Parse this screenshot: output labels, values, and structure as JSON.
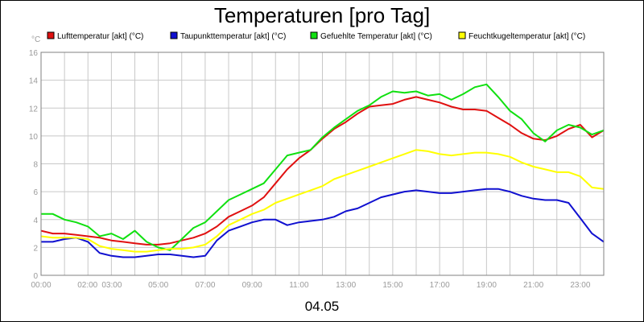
{
  "chart_data": {
    "type": "line",
    "title": "Temperaturen [pro Tag]",
    "ylabel": "°C",
    "xlabel": "04.05",
    "ylim": [
      0,
      16
    ],
    "yticks": [
      0,
      2,
      4,
      6,
      8,
      10,
      12,
      14,
      16
    ],
    "xlim": [
      0,
      24
    ],
    "xtick_labels": [
      {
        "x": 0,
        "label": "00:00"
      },
      {
        "x": 2,
        "label": "02:00"
      },
      {
        "x": 3,
        "label": "03:00"
      },
      {
        "x": 5,
        "label": "05:00"
      },
      {
        "x": 7,
        "label": "07:00"
      },
      {
        "x": 9,
        "label": "09:00"
      },
      {
        "x": 11,
        "label": "11:00"
      },
      {
        "x": 13,
        "label": "13:00"
      },
      {
        "x": 15,
        "label": "15:00"
      },
      {
        "x": 17,
        "label": "17:00"
      },
      {
        "x": 19,
        "label": "19:00"
      },
      {
        "x": 21,
        "label": "21:00"
      },
      {
        "x": 23,
        "label": "23:00"
      }
    ],
    "grid": true,
    "legend": "top",
    "series": [
      {
        "name": "Lufttemperatur [akt] (°C)",
        "color": "#e01010",
        "x": [
          0,
          0.5,
          1,
          1.5,
          2,
          2.5,
          3,
          3.5,
          4,
          4.5,
          5,
          5.5,
          6,
          6.5,
          7,
          7.5,
          8,
          8.5,
          9,
          9.5,
          10,
          10.5,
          11,
          11.5,
          12,
          12.5,
          13,
          13.5,
          14,
          14.5,
          15,
          15.5,
          16,
          16.5,
          17,
          17.5,
          18,
          18.5,
          19,
          19.5,
          20,
          20.5,
          21,
          21.5,
          22,
          22.5,
          23,
          23.5,
          24
        ],
        "y": [
          3.2,
          3.0,
          3.0,
          2.9,
          2.8,
          2.7,
          2.5,
          2.4,
          2.3,
          2.2,
          2.2,
          2.3,
          2.5,
          2.7,
          3.0,
          3.5,
          4.2,
          4.6,
          5.0,
          5.6,
          6.6,
          7.6,
          8.4,
          9.0,
          9.8,
          10.5,
          11.0,
          11.6,
          12.1,
          12.2,
          12.3,
          12.6,
          12.8,
          12.6,
          12.4,
          12.1,
          11.9,
          11.9,
          11.8,
          11.3,
          10.8,
          10.2,
          9.8,
          9.7,
          10.0,
          10.5,
          10.8,
          9.9,
          10.4
        ]
      },
      {
        "name": "Taupunkttemperatur [akt] (°C)",
        "color": "#1010d0",
        "x": [
          0,
          0.5,
          1,
          1.5,
          2,
          2.5,
          3,
          3.5,
          4,
          4.5,
          5,
          5.5,
          6,
          6.5,
          7,
          7.5,
          8,
          8.5,
          9,
          9.5,
          10,
          10.5,
          11,
          11.5,
          12,
          12.5,
          13,
          13.5,
          14,
          14.5,
          15,
          15.5,
          16,
          16.5,
          17,
          17.5,
          18,
          18.5,
          19,
          19.5,
          20,
          20.5,
          21,
          21.5,
          22,
          22.5,
          23,
          23.5,
          24
        ],
        "y": [
          2.4,
          2.4,
          2.6,
          2.7,
          2.4,
          1.6,
          1.4,
          1.3,
          1.3,
          1.4,
          1.5,
          1.5,
          1.4,
          1.3,
          1.4,
          2.5,
          3.2,
          3.5,
          3.8,
          4.0,
          4.0,
          3.6,
          3.8,
          3.9,
          4.0,
          4.2,
          4.6,
          4.8,
          5.2,
          5.6,
          5.8,
          6.0,
          6.1,
          6.0,
          5.9,
          5.9,
          6.0,
          6.1,
          6.2,
          6.2,
          6.0,
          5.7,
          5.5,
          5.4,
          5.4,
          5.2,
          4.1,
          3.0,
          2.4
        ]
      },
      {
        "name": "Gefuehlte Temperatur [akt] (°C)",
        "color": "#10e010",
        "x": [
          0,
          0.5,
          1,
          1.5,
          2,
          2.5,
          3,
          3.5,
          4,
          4.5,
          5,
          5.5,
          6,
          6.5,
          7,
          7.5,
          8,
          8.5,
          9,
          9.5,
          10,
          10.5,
          11,
          11.5,
          12,
          12.5,
          13,
          13.5,
          14,
          14.5,
          15,
          15.5,
          16,
          16.5,
          17,
          17.5,
          18,
          18.5,
          19,
          19.5,
          20,
          20.5,
          21,
          21.5,
          22,
          22.5,
          23,
          23.5,
          24
        ],
        "y": [
          4.4,
          4.4,
          4.0,
          3.8,
          3.5,
          2.8,
          3.0,
          2.6,
          3.2,
          2.4,
          2.0,
          1.8,
          2.6,
          3.4,
          3.8,
          4.6,
          5.4,
          5.8,
          6.2,
          6.6,
          7.6,
          8.6,
          8.8,
          9.0,
          9.9,
          10.6,
          11.2,
          11.8,
          12.2,
          12.8,
          13.2,
          13.1,
          13.2,
          12.9,
          13.0,
          12.6,
          13.0,
          13.5,
          13.7,
          12.8,
          11.8,
          11.2,
          10.2,
          9.6,
          10.4,
          10.8,
          10.6,
          10.1,
          10.4
        ]
      },
      {
        "name": "Feuchtkugeltemperatur [akt] (°C)",
        "color": "#ffff00",
        "x": [
          0,
          0.5,
          1,
          1.5,
          2,
          2.5,
          3,
          3.5,
          4,
          4.5,
          5,
          5.5,
          6,
          6.5,
          7,
          7.5,
          8,
          8.5,
          9,
          9.5,
          10,
          10.5,
          11,
          11.5,
          12,
          12.5,
          13,
          13.5,
          14,
          14.5,
          15,
          15.5,
          16,
          16.5,
          17,
          17.5,
          18,
          18.5,
          19,
          19.5,
          20,
          20.5,
          21,
          21.5,
          22,
          22.5,
          23,
          23.5,
          24
        ],
        "y": [
          2.8,
          2.7,
          2.7,
          2.7,
          2.6,
          2.1,
          1.9,
          1.8,
          1.7,
          1.7,
          1.8,
          1.9,
          1.9,
          2.0,
          2.2,
          2.8,
          3.6,
          4.0,
          4.4,
          4.7,
          5.2,
          5.5,
          5.8,
          6.1,
          6.4,
          6.9,
          7.2,
          7.5,
          7.8,
          8.1,
          8.4,
          8.7,
          9.0,
          8.9,
          8.7,
          8.6,
          8.7,
          8.8,
          8.8,
          8.7,
          8.5,
          8.1,
          7.8,
          7.6,
          7.4,
          7.4,
          7.1,
          6.3,
          6.2
        ]
      }
    ]
  }
}
